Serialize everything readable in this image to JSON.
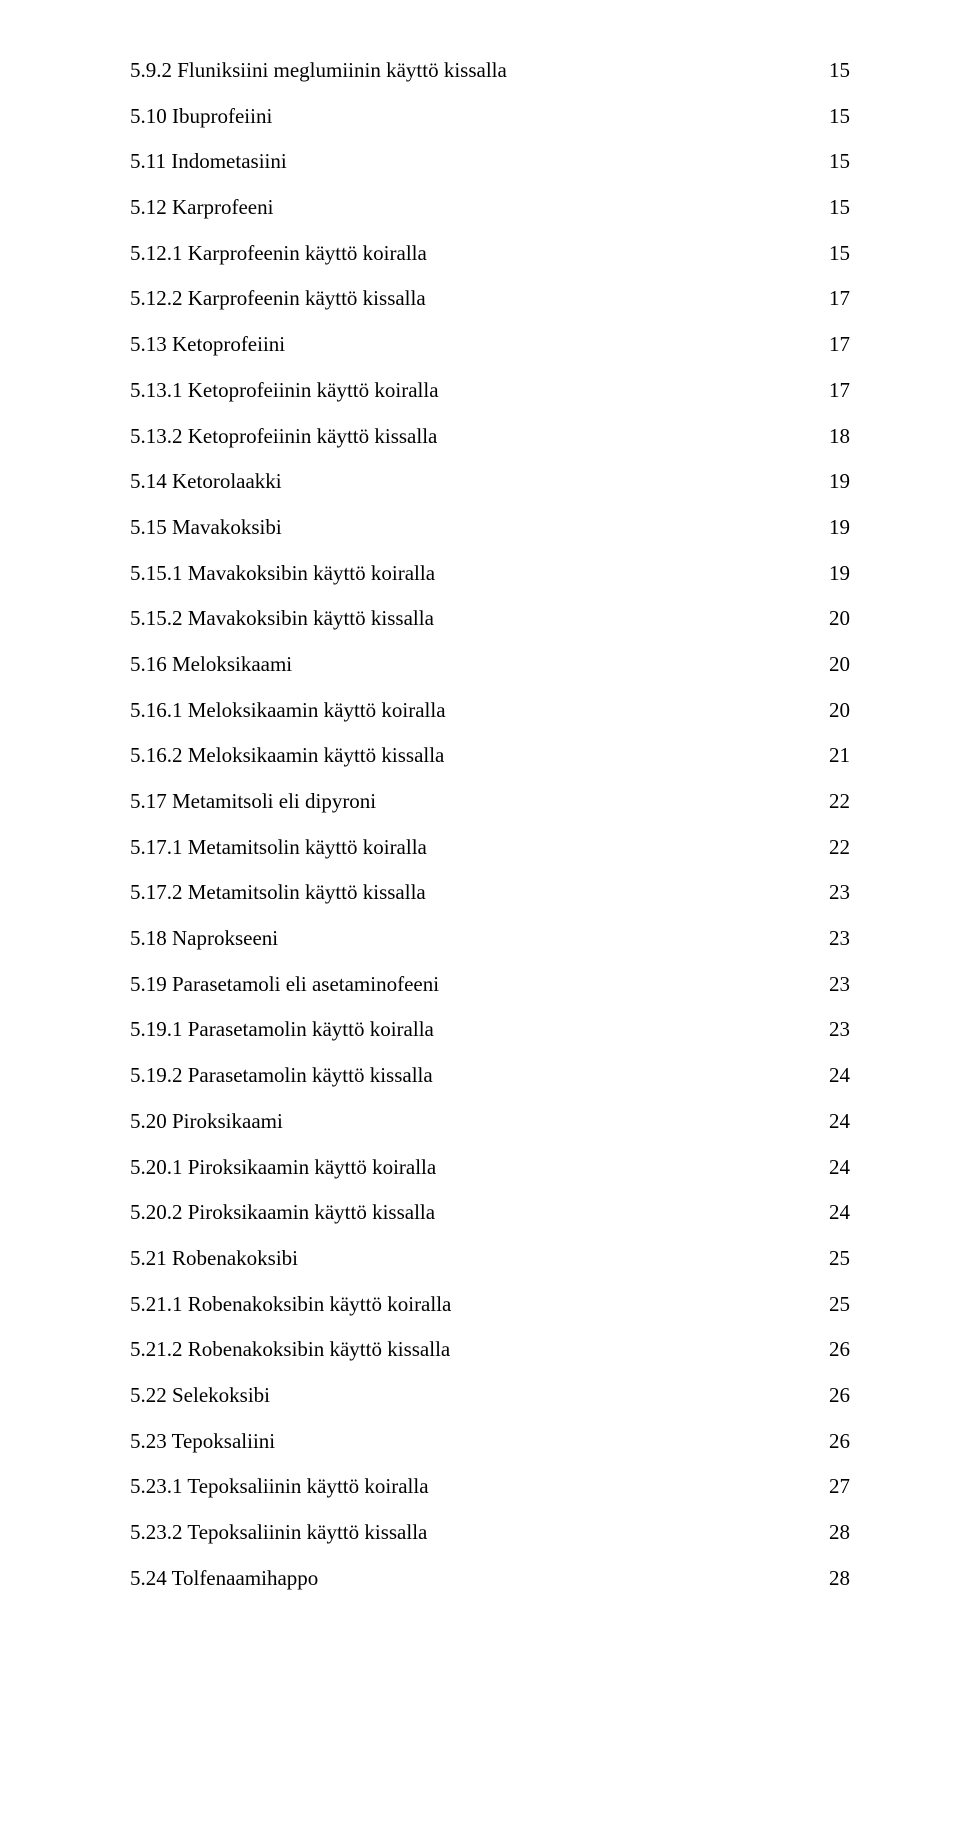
{
  "toc": [
    {
      "label": "5.9.2 Fluniksiini meglumiinin käyttö kissalla",
      "page": "15"
    },
    {
      "label": "5.10 Ibuprofeiini",
      "page": "15"
    },
    {
      "label": "5.11 Indometasiini",
      "page": "15"
    },
    {
      "label": "5.12 Karprofeeni",
      "page": "15"
    },
    {
      "label": "5.12.1 Karprofeenin käyttö koiralla",
      "page": "15"
    },
    {
      "label": "5.12.2 Karprofeenin käyttö kissalla",
      "page": "17"
    },
    {
      "label": "5.13 Ketoprofeiini",
      "page": "17"
    },
    {
      "label": "5.13.1 Ketoprofeiinin käyttö koiralla",
      "page": "17"
    },
    {
      "label": "5.13.2 Ketoprofeiinin käyttö kissalla",
      "page": "18"
    },
    {
      "label": "5.14 Ketorolaakki",
      "page": "19"
    },
    {
      "label": "5.15 Mavakoksibi",
      "page": "19"
    },
    {
      "label": "5.15.1 Mavakoksibin käyttö koiralla",
      "page": "19"
    },
    {
      "label": "5.15.2 Mavakoksibin käyttö kissalla",
      "page": "20"
    },
    {
      "label": "5.16 Meloksikaami",
      "page": "20"
    },
    {
      "label": "5.16.1 Meloksikaamin käyttö koiralla",
      "page": "20"
    },
    {
      "label": "5.16.2 Meloksikaamin käyttö kissalla",
      "page": "21"
    },
    {
      "label": "5.17 Metamitsoli eli dipyroni",
      "page": "22"
    },
    {
      "label": "5.17.1 Metamitsolin käyttö koiralla",
      "page": "22"
    },
    {
      "label": "5.17.2 Metamitsolin käyttö kissalla",
      "page": "23"
    },
    {
      "label": "5.18 Naprokseeni",
      "page": "23"
    },
    {
      "label": "5.19 Parasetamoli eli asetaminofeeni",
      "page": "23"
    },
    {
      "label": "5.19.1 Parasetamolin käyttö koiralla",
      "page": "23"
    },
    {
      "label": "5.19.2 Parasetamolin käyttö kissalla",
      "page": "24"
    },
    {
      "label": "5.20 Piroksikaami",
      "page": "24"
    },
    {
      "label": "5.20.1 Piroksikaamin käyttö koiralla",
      "page": "24"
    },
    {
      "label": "5.20.2 Piroksikaamin käyttö kissalla",
      "page": "24"
    },
    {
      "label": "5.21 Robenakoksibi",
      "page": "25"
    },
    {
      "label": "5.21.1 Robenakoksibin käyttö koiralla",
      "page": "25"
    },
    {
      "label": "5.21.2 Robenakoksibin käyttö kissalla",
      "page": "26"
    },
    {
      "label": "5.22 Selekoksibi",
      "page": "26"
    },
    {
      "label": "5.23 Tepoksaliini",
      "page": "26"
    },
    {
      "label": "5.23.1 Tepoksaliinin käyttö koiralla",
      "page": "27"
    },
    {
      "label": "5.23.2 Tepoksaliinin käyttö kissalla",
      "page": "28"
    },
    {
      "label": "5.24 Tolfenaamihappo",
      "page": "28"
    }
  ]
}
